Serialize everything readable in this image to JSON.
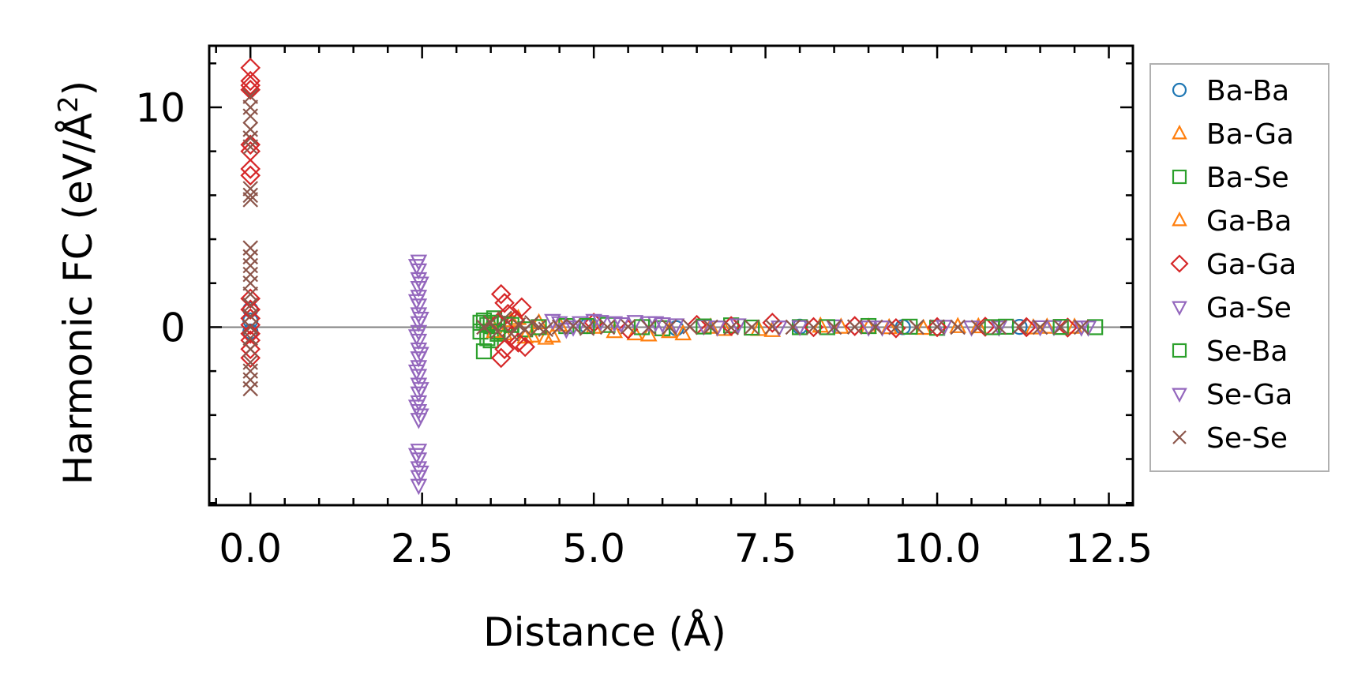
{
  "chart_data": {
    "type": "scatter",
    "title": "",
    "xlabel": "Distance (Å)",
    "ylabel_main": "Harmonic FC (eV/Å",
    "ylabel_sup": "2",
    "ylabel_close": ")",
    "xlim": [
      -0.6,
      12.85
    ],
    "ylim": [
      -8.1,
      12.8
    ],
    "xticks": [
      0.0,
      2.5,
      5.0,
      7.5,
      10.0,
      12.5
    ],
    "xtick_labels": [
      "0.0",
      "2.5",
      "5.0",
      "7.5",
      "10.0",
      "12.5"
    ],
    "yticks": [
      0,
      10
    ],
    "ytick_labels": [
      "0",
      "10"
    ],
    "x_minor_step": 0.5,
    "y_minor_step": 2,
    "zero_line": true,
    "legend_position": "right-outside",
    "series": [
      {
        "name": "Ba-Ba",
        "marker": "circle",
        "color": "#1f77b4",
        "points": [
          [
            0.0,
            0.3
          ],
          [
            0.0,
            -0.2
          ],
          [
            0.0,
            0.8
          ],
          [
            4.9,
            0.05
          ],
          [
            6.2,
            -0.05
          ],
          [
            8.0,
            0.02
          ],
          [
            9.5,
            0.0
          ],
          [
            11.2,
            0.01
          ]
        ]
      },
      {
        "name": "Ba-Ga",
        "marker": "triangle-up",
        "color": "#ff7f0e",
        "points": [
          [
            3.5,
            0.2
          ],
          [
            3.7,
            -0.3
          ],
          [
            3.9,
            0.4
          ],
          [
            4.1,
            -0.4
          ],
          [
            4.3,
            -0.5
          ],
          [
            4.5,
            0.1
          ],
          [
            5.3,
            -0.2
          ],
          [
            5.8,
            -0.35
          ],
          [
            6.3,
            -0.3
          ],
          [
            6.9,
            -0.1
          ],
          [
            7.6,
            -0.15
          ],
          [
            8.3,
            0.05
          ],
          [
            9.0,
            0.0
          ],
          [
            9.8,
            -0.05
          ],
          [
            10.6,
            0.02
          ],
          [
            11.4,
            -0.03
          ],
          [
            12.0,
            0.0
          ]
        ]
      },
      {
        "name": "Ba-Se",
        "marker": "square",
        "color": "#2ca02c",
        "points": [
          [
            3.35,
            0.2
          ],
          [
            3.35,
            -0.2
          ],
          [
            3.4,
            -1.1
          ],
          [
            3.45,
            0.1
          ],
          [
            3.5,
            -0.6
          ],
          [
            3.55,
            0.4
          ],
          [
            3.6,
            -0.3
          ],
          [
            3.7,
            0.15
          ],
          [
            4.0,
            -0.1
          ],
          [
            4.6,
            0.05
          ],
          [
            5.2,
            0.1
          ],
          [
            6.0,
            -0.05
          ],
          [
            7.0,
            0.08
          ],
          [
            8.0,
            0.0
          ],
          [
            9.0,
            0.05
          ],
          [
            10.0,
            -0.03
          ],
          [
            11.0,
            0.02
          ],
          [
            12.3,
            0.0
          ]
        ]
      },
      {
        "name": "Ga-Ba",
        "marker": "triangle-up",
        "color": "#ff7f0e",
        "points": [
          [
            3.55,
            -0.2
          ],
          [
            3.8,
            0.3
          ],
          [
            4.0,
            -0.45
          ],
          [
            4.2,
            0.2
          ],
          [
            4.4,
            -0.4
          ],
          [
            5.0,
            0.0
          ],
          [
            5.6,
            -0.3
          ],
          [
            6.1,
            -0.2
          ],
          [
            6.7,
            0.0
          ],
          [
            7.4,
            -0.1
          ],
          [
            8.6,
            0.0
          ],
          [
            9.3,
            -0.02
          ],
          [
            10.3,
            0.03
          ],
          [
            11.6,
            0.0
          ]
        ]
      },
      {
        "name": "Ga-Ga",
        "marker": "diamond",
        "color": "#d62728",
        "points": [
          [
            0.0,
            11.8
          ],
          [
            0.0,
            11.2
          ],
          [
            0.0,
            11.0
          ],
          [
            0.0,
            10.8
          ],
          [
            0.0,
            8.3
          ],
          [
            0.0,
            8.0
          ],
          [
            0.0,
            7.2
          ],
          [
            0.0,
            6.9
          ],
          [
            0.0,
            1.3
          ],
          [
            0.0,
            0.8
          ],
          [
            0.0,
            0.4
          ],
          [
            0.0,
            0.1
          ],
          [
            0.0,
            -0.3
          ],
          [
            0.0,
            -0.6
          ],
          [
            0.0,
            -1.0
          ],
          [
            0.0,
            -1.4
          ],
          [
            3.65,
            1.5
          ],
          [
            3.7,
            1.1
          ],
          [
            3.75,
            0.6
          ],
          [
            3.7,
            -1.0
          ],
          [
            3.65,
            -1.4
          ],
          [
            3.85,
            0.3
          ],
          [
            3.9,
            -0.7
          ],
          [
            3.95,
            0.9
          ],
          [
            4.0,
            -0.9
          ],
          [
            3.8,
            -0.4
          ],
          [
            3.6,
            0.2
          ],
          [
            5.0,
            0.2
          ],
          [
            5.5,
            -0.1
          ],
          [
            6.5,
            0.1
          ],
          [
            7.0,
            0.05
          ],
          [
            7.6,
            0.2
          ],
          [
            8.2,
            0.0
          ],
          [
            8.8,
            0.05
          ],
          [
            9.4,
            -0.05
          ],
          [
            10.0,
            0.0
          ],
          [
            10.7,
            0.02
          ],
          [
            11.3,
            0.0
          ],
          [
            11.9,
            -0.02
          ]
        ]
      },
      {
        "name": "Ga-Se",
        "marker": "triangle-down",
        "color": "#9467bd",
        "points": [
          [
            2.45,
            3.0
          ],
          [
            2.45,
            2.6
          ],
          [
            2.45,
            2.2
          ],
          [
            2.45,
            1.8
          ],
          [
            2.45,
            1.4
          ],
          [
            2.45,
            1.0
          ],
          [
            2.45,
            0.6
          ],
          [
            2.45,
            0.2
          ],
          [
            2.45,
            -0.2
          ],
          [
            2.45,
            -0.6
          ],
          [
            2.45,
            -1.0
          ],
          [
            2.45,
            -1.4
          ],
          [
            2.45,
            -1.8
          ],
          [
            2.45,
            -2.2
          ],
          [
            2.45,
            -2.6
          ],
          [
            2.45,
            -3.0
          ],
          [
            2.45,
            -3.4
          ],
          [
            2.45,
            -3.8
          ],
          [
            2.45,
            -4.2
          ],
          [
            2.45,
            -5.6
          ],
          [
            2.45,
            -6.0
          ],
          [
            2.45,
            -6.4
          ],
          [
            2.45,
            -6.8
          ],
          [
            2.45,
            -7.2
          ],
          [
            4.4,
            0.3
          ],
          [
            4.6,
            -0.1
          ],
          [
            4.8,
            0.2
          ],
          [
            5.0,
            0.3
          ],
          [
            5.3,
            0.2
          ],
          [
            5.6,
            0.25
          ],
          [
            5.9,
            0.2
          ],
          [
            6.2,
            0.1
          ],
          [
            6.6,
            0.05
          ],
          [
            7.1,
            0.1
          ],
          [
            7.7,
            0.0
          ],
          [
            8.5,
            0.05
          ],
          [
            9.2,
            0.0
          ],
          [
            10.1,
            0.03
          ],
          [
            10.9,
            0.0
          ],
          [
            11.7,
            0.02
          ],
          [
            12.1,
            0.0
          ]
        ]
      },
      {
        "name": "Se-Ba",
        "marker": "square",
        "color": "#2ca02c",
        "points": [
          [
            3.4,
            0.3
          ],
          [
            3.45,
            -0.5
          ],
          [
            3.5,
            0.2
          ],
          [
            3.6,
            -0.2
          ],
          [
            3.8,
            0.1
          ],
          [
            4.2,
            0.0
          ],
          [
            4.9,
            0.05
          ],
          [
            5.7,
            0.0
          ],
          [
            6.6,
            0.03
          ],
          [
            7.3,
            -0.02
          ],
          [
            8.4,
            0.0
          ],
          [
            9.6,
            0.02
          ],
          [
            10.8,
            0.0
          ],
          [
            11.8,
            0.01
          ]
        ]
      },
      {
        "name": "Se-Ga",
        "marker": "triangle-down",
        "color": "#9467bd",
        "points": [
          [
            2.42,
            2.8
          ],
          [
            2.48,
            2.0
          ],
          [
            2.42,
            1.2
          ],
          [
            2.48,
            0.4
          ],
          [
            2.42,
            -0.4
          ],
          [
            2.48,
            -1.2
          ],
          [
            2.42,
            -2.0
          ],
          [
            2.48,
            -2.8
          ],
          [
            2.42,
            -3.6
          ],
          [
            2.48,
            -4.0
          ],
          [
            2.42,
            -5.8
          ],
          [
            2.48,
            -6.6
          ],
          [
            4.5,
            0.2
          ],
          [
            4.7,
            0.0
          ],
          [
            5.1,
            0.25
          ],
          [
            5.4,
            0.15
          ],
          [
            5.8,
            0.2
          ],
          [
            6.0,
            0.15
          ],
          [
            6.8,
            0.0
          ],
          [
            8.0,
            0.02
          ],
          [
            9.0,
            0.0
          ],
          [
            10.5,
            0.0
          ],
          [
            11.5,
            0.01
          ],
          [
            12.2,
            0.0
          ]
        ]
      },
      {
        "name": "Se-Se",
        "marker": "cross",
        "color": "#8c564b",
        "points": [
          [
            0.0,
            10.5
          ],
          [
            0.0,
            10.0
          ],
          [
            0.0,
            9.6
          ],
          [
            0.0,
            9.0
          ],
          [
            0.0,
            8.6
          ],
          [
            0.0,
            8.2
          ],
          [
            0.0,
            6.3
          ],
          [
            0.0,
            6.0
          ],
          [
            0.0,
            5.8
          ],
          [
            0.0,
            3.6
          ],
          [
            0.0,
            3.2
          ],
          [
            0.0,
            2.8
          ],
          [
            0.0,
            2.4
          ],
          [
            0.0,
            2.0
          ],
          [
            0.0,
            1.5
          ],
          [
            0.0,
            1.0
          ],
          [
            0.0,
            0.5
          ],
          [
            0.0,
            0.0
          ],
          [
            0.0,
            -0.5
          ],
          [
            0.0,
            -1.0
          ],
          [
            0.0,
            -1.6
          ],
          [
            0.0,
            -2.0
          ],
          [
            0.0,
            -2.4
          ],
          [
            0.0,
            -2.8
          ],
          [
            3.4,
            0.0
          ],
          [
            3.5,
            0.2
          ],
          [
            3.6,
            -0.2
          ],
          [
            3.7,
            0.4
          ],
          [
            3.8,
            -0.3
          ],
          [
            3.9,
            0.1
          ],
          [
            4.0,
            -0.1
          ],
          [
            4.1,
            0.2
          ],
          [
            4.2,
            0.0
          ],
          [
            4.3,
            -0.1
          ],
          [
            4.5,
            0.0
          ],
          [
            4.7,
            0.05
          ],
          [
            4.9,
            -0.05
          ],
          [
            5.2,
            0.0
          ],
          [
            5.5,
            0.02
          ],
          [
            5.8,
            -0.02
          ],
          [
            6.1,
            0.0
          ],
          [
            6.4,
            0.02
          ],
          [
            6.7,
            0.0
          ],
          [
            7.0,
            -0.02
          ],
          [
            7.3,
            0.0
          ],
          [
            7.6,
            0.02
          ],
          [
            7.9,
            0.0
          ],
          [
            8.2,
            -0.01
          ],
          [
            8.5,
            0.0
          ],
          [
            8.8,
            0.01
          ],
          [
            9.1,
            0.0
          ],
          [
            9.4,
            -0.01
          ],
          [
            9.7,
            0.0
          ],
          [
            10.0,
            0.01
          ],
          [
            10.3,
            0.0
          ],
          [
            10.6,
            -0.01
          ],
          [
            10.9,
            0.0
          ],
          [
            11.2,
            0.01
          ],
          [
            11.5,
            0.0
          ],
          [
            11.8,
            0.0
          ],
          [
            12.1,
            0.0
          ]
        ]
      }
    ]
  }
}
